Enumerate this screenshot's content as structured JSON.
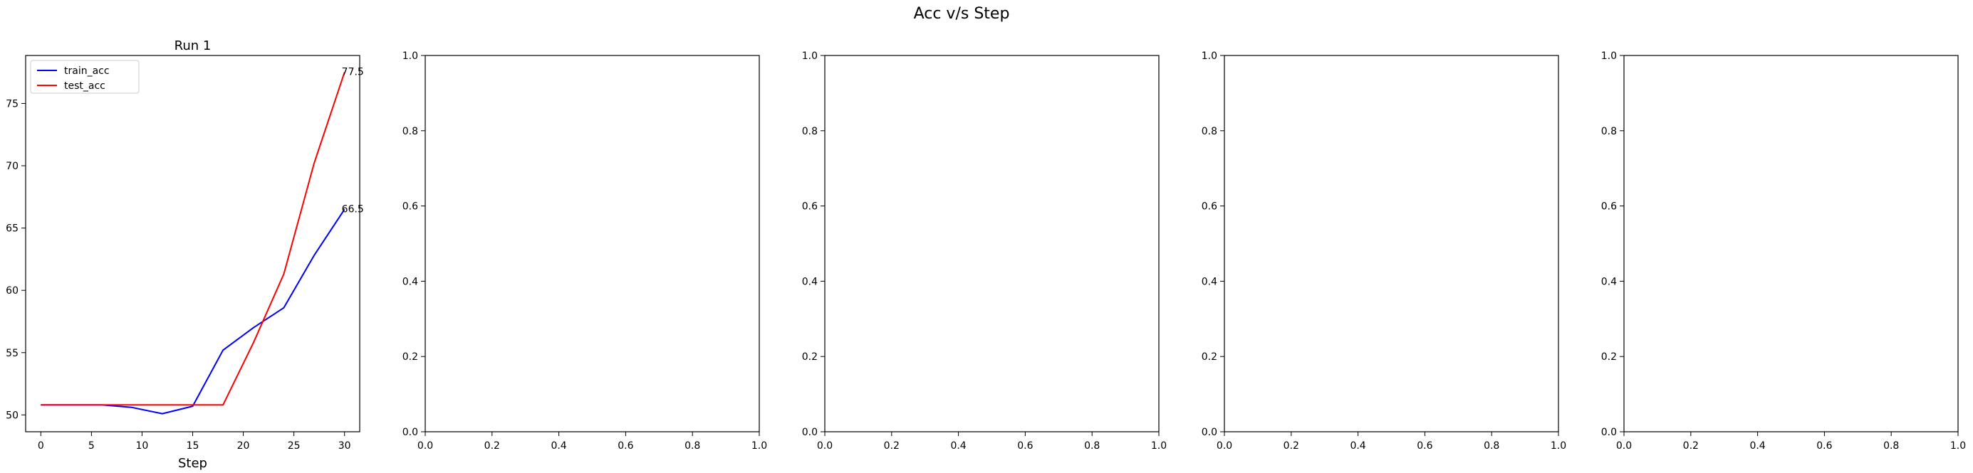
{
  "figure": {
    "suptitle": "Acc v/s Step"
  },
  "chart_data": [
    {
      "type": "line",
      "title": "Run 1",
      "xlabel": "Step",
      "ylabel": "",
      "xlim": [
        -1.5,
        31.5
      ],
      "ylim": [
        48.65,
        78.85
      ],
      "xticks": [
        0,
        5,
        10,
        15,
        20,
        25,
        30
      ],
      "yticks": [
        50,
        55,
        60,
        65,
        70,
        75
      ],
      "grid": false,
      "legend": "upper-left",
      "series": [
        {
          "name": "train_acc",
          "color": "#0000ff",
          "x": [
            0,
            3,
            6,
            9,
            12,
            15,
            18,
            21,
            24,
            27,
            30
          ],
          "y": [
            50.8,
            50.8,
            50.8,
            50.6,
            50.1,
            50.7,
            55.2,
            57.0,
            58.6,
            62.8,
            66.5
          ]
        },
        {
          "name": "test_acc",
          "color": "#ff0000",
          "x": [
            0,
            3,
            6,
            9,
            12,
            15,
            18,
            21,
            24,
            27,
            30
          ],
          "y": [
            50.8,
            50.8,
            50.8,
            50.8,
            50.8,
            50.8,
            50.8,
            55.8,
            61.3,
            70.2,
            77.5
          ]
        }
      ],
      "annotations": [
        {
          "text": "66.5",
          "x": 30,
          "y": 66.5
        },
        {
          "text": "77.5",
          "x": 30,
          "y": 77.5
        }
      ]
    },
    {
      "type": "line",
      "title": "",
      "xlabel": "",
      "xlim": [
        0,
        1
      ],
      "ylim": [
        0,
        1
      ],
      "xticks": [
        "0.0",
        "0.2",
        "0.4",
        "0.6",
        "0.8",
        "1.0"
      ],
      "yticks": [
        "0.0",
        "0.2",
        "0.4",
        "0.6",
        "0.8",
        "1.0"
      ],
      "series": []
    },
    {
      "type": "line",
      "title": "",
      "xlabel": "",
      "xlim": [
        0,
        1
      ],
      "ylim": [
        0,
        1
      ],
      "xticks": [
        "0.0",
        "0.2",
        "0.4",
        "0.6",
        "0.8",
        "1.0"
      ],
      "yticks": [
        "0.0",
        "0.2",
        "0.4",
        "0.6",
        "0.8",
        "1.0"
      ],
      "series": []
    },
    {
      "type": "line",
      "title": "",
      "xlabel": "",
      "xlim": [
        0,
        1
      ],
      "ylim": [
        0,
        1
      ],
      "xticks": [
        "0.0",
        "0.2",
        "0.4",
        "0.6",
        "0.8",
        "1.0"
      ],
      "yticks": [
        "0.0",
        "0.2",
        "0.4",
        "0.6",
        "0.8",
        "1.0"
      ],
      "series": []
    },
    {
      "type": "line",
      "title": "",
      "xlabel": "",
      "xlim": [
        0,
        1
      ],
      "ylim": [
        0,
        1
      ],
      "xticks": [
        "0.0",
        "0.2",
        "0.4",
        "0.6",
        "0.8",
        "1.0"
      ],
      "yticks": [
        "0.0",
        "0.2",
        "0.4",
        "0.6",
        "0.8",
        "1.0"
      ],
      "series": []
    }
  ]
}
